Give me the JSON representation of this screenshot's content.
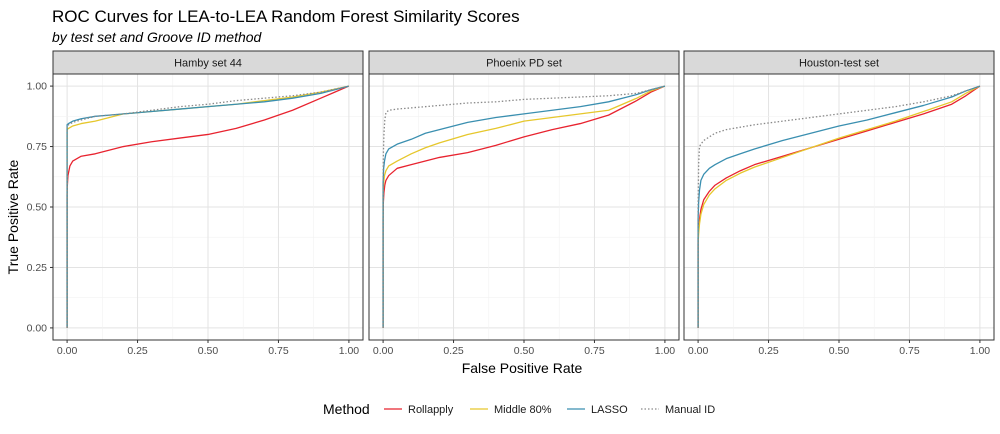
{
  "chart_data": {
    "type": "line",
    "title": "ROC Curves for LEA-to-LEA Random Forest Similarity Scores",
    "subtitle": "by test set and Groove ID method",
    "xlabel": "False Positive Rate",
    "ylabel": "True Positive Rate",
    "xlim": [
      0,
      1
    ],
    "ylim": [
      0,
      1
    ],
    "x_ticks": [
      "0.00",
      "0.25",
      "0.50",
      "0.75",
      "1.00"
    ],
    "y_ticks": [
      "0.00",
      "0.25",
      "0.50",
      "0.75",
      "1.00"
    ],
    "grid": true,
    "legend_position": "bottom",
    "legend": {
      "title": "Method",
      "entries": [
        {
          "name": "Rollapply",
          "color": "#e8232f",
          "dash": "solid"
        },
        {
          "name": "Middle 80%",
          "color": "#e6c72c",
          "dash": "solid"
        },
        {
          "name": "LASSO",
          "color": "#3a8fb0",
          "dash": "solid"
        },
        {
          "name": "Manual ID",
          "color": "#8a8a8a",
          "dash": "dotted"
        }
      ]
    },
    "panels": [
      {
        "name": "Hamby set 44",
        "series": [
          {
            "name": "Rollapply",
            "x": [
              0,
              0,
              0.001,
              0.003,
              0.01,
              0.02,
              0.05,
              0.1,
              0.15,
              0.2,
              0.3,
              0.4,
              0.5,
              0.6,
              0.7,
              0.8,
              0.9,
              0.95,
              1.0
            ],
            "y": [
              0,
              0.55,
              0.59,
              0.63,
              0.67,
              0.69,
              0.71,
              0.72,
              0.735,
              0.75,
              0.77,
              0.785,
              0.8,
              0.825,
              0.86,
              0.9,
              0.95,
              0.975,
              1.0
            ]
          },
          {
            "name": "Middle 80%",
            "x": [
              0,
              0,
              0.005,
              0.02,
              0.05,
              0.1,
              0.15,
              0.2,
              0.3,
              0.4,
              0.5,
              0.6,
              0.7,
              0.8,
              0.9,
              1.0
            ],
            "y": [
              0,
              0.82,
              0.825,
              0.835,
              0.845,
              0.855,
              0.87,
              0.885,
              0.895,
              0.905,
              0.915,
              0.925,
              0.94,
              0.955,
              0.975,
              1.0
            ]
          },
          {
            "name": "LASSO",
            "x": [
              0,
              0,
              0.005,
              0.02,
              0.05,
              0.1,
              0.15,
              0.2,
              0.3,
              0.4,
              0.5,
              0.6,
              0.7,
              0.8,
              0.9,
              1.0
            ],
            "y": [
              0,
              0.84,
              0.845,
              0.855,
              0.865,
              0.875,
              0.88,
              0.885,
              0.895,
              0.905,
              0.915,
              0.925,
              0.935,
              0.95,
              0.97,
              1.0
            ]
          },
          {
            "name": "Manual ID",
            "x": [
              0,
              0,
              0.005,
              0.02,
              0.05,
              0.1,
              0.15,
              0.2,
              0.3,
              0.4,
              0.5,
              0.6,
              0.7,
              0.8,
              0.9,
              1.0
            ],
            "y": [
              0,
              0.835,
              0.84,
              0.85,
              0.86,
              0.875,
              0.88,
              0.885,
              0.9,
              0.915,
              0.925,
              0.94,
              0.95,
              0.96,
              0.975,
              1.0
            ]
          }
        ]
      },
      {
        "name": "Phoenix PD set",
        "series": [
          {
            "name": "Rollapply",
            "x": [
              0,
              0,
              0.001,
              0.003,
              0.006,
              0.01,
              0.02,
              0.05,
              0.1,
              0.15,
              0.2,
              0.3,
              0.4,
              0.5,
              0.6,
              0.7,
              0.8,
              0.9,
              0.95,
              1.0
            ],
            "y": [
              0,
              0.45,
              0.52,
              0.56,
              0.59,
              0.61,
              0.63,
              0.66,
              0.675,
              0.69,
              0.705,
              0.725,
              0.755,
              0.79,
              0.82,
              0.845,
              0.88,
              0.94,
              0.975,
              1.0
            ]
          },
          {
            "name": "Middle 80%",
            "x": [
              0,
              0,
              0.002,
              0.005,
              0.01,
              0.02,
              0.05,
              0.1,
              0.15,
              0.2,
              0.3,
              0.4,
              0.5,
              0.6,
              0.7,
              0.8,
              0.9,
              0.95,
              1.0
            ],
            "y": [
              0,
              0.55,
              0.6,
              0.63,
              0.65,
              0.67,
              0.69,
              0.72,
              0.745,
              0.765,
              0.8,
              0.825,
              0.855,
              0.87,
              0.885,
              0.9,
              0.95,
              0.98,
              1.0
            ]
          },
          {
            "name": "LASSO",
            "x": [
              0,
              0,
              0.002,
              0.005,
              0.01,
              0.02,
              0.05,
              0.1,
              0.15,
              0.2,
              0.3,
              0.4,
              0.5,
              0.6,
              0.7,
              0.8,
              0.9,
              0.95,
              1.0
            ],
            "y": [
              0,
              0.6,
              0.66,
              0.69,
              0.72,
              0.74,
              0.76,
              0.78,
              0.805,
              0.82,
              0.85,
              0.87,
              0.885,
              0.9,
              0.915,
              0.935,
              0.965,
              0.985,
              1.0
            ]
          },
          {
            "name": "Manual ID",
            "x": [
              0,
              0,
              0.001,
              0.003,
              0.006,
              0.01,
              0.02,
              0.05,
              0.1,
              0.2,
              0.3,
              0.4,
              0.5,
              0.6,
              0.7,
              0.8,
              0.9,
              0.95,
              1.0
            ],
            "y": [
              0,
              0.6,
              0.72,
              0.8,
              0.86,
              0.89,
              0.9,
              0.905,
              0.91,
              0.92,
              0.93,
              0.935,
              0.945,
              0.95,
              0.955,
              0.96,
              0.97,
              0.985,
              1.0
            ]
          }
        ]
      },
      {
        "name": "Houston-test set",
        "series": [
          {
            "name": "Rollapply",
            "x": [
              0,
              0,
              0.002,
              0.005,
              0.01,
              0.02,
              0.04,
              0.06,
              0.1,
              0.15,
              0.2,
              0.3,
              0.4,
              0.5,
              0.6,
              0.7,
              0.8,
              0.9,
              0.95,
              1.0
            ],
            "y": [
              0,
              0.37,
              0.41,
              0.45,
              0.49,
              0.53,
              0.565,
              0.59,
              0.62,
              0.65,
              0.675,
              0.71,
              0.745,
              0.78,
              0.815,
              0.85,
              0.885,
              0.925,
              0.96,
              1.0
            ]
          },
          {
            "name": "Middle 80%",
            "x": [
              0,
              0,
              0.002,
              0.005,
              0.01,
              0.02,
              0.04,
              0.06,
              0.1,
              0.15,
              0.2,
              0.3,
              0.4,
              0.5,
              0.6,
              0.7,
              0.8,
              0.9,
              0.95,
              1.0
            ],
            "y": [
              0,
              0.35,
              0.39,
              0.43,
              0.47,
              0.51,
              0.55,
              0.575,
              0.61,
              0.64,
              0.665,
              0.705,
              0.745,
              0.785,
              0.82,
              0.855,
              0.895,
              0.935,
              0.97,
              1.0
            ]
          },
          {
            "name": "LASSO",
            "x": [
              0,
              0,
              0.002,
              0.005,
              0.01,
              0.02,
              0.04,
              0.06,
              0.1,
              0.15,
              0.2,
              0.3,
              0.4,
              0.5,
              0.6,
              0.7,
              0.8,
              0.9,
              0.95,
              1.0
            ],
            "y": [
              0,
              0.45,
              0.52,
              0.57,
              0.61,
              0.635,
              0.66,
              0.675,
              0.7,
              0.72,
              0.74,
              0.775,
              0.805,
              0.835,
              0.86,
              0.89,
              0.92,
              0.955,
              0.98,
              1.0
            ]
          },
          {
            "name": "Manual ID",
            "x": [
              0,
              0,
              0.002,
              0.005,
              0.01,
              0.02,
              0.04,
              0.06,
              0.1,
              0.15,
              0.2,
              0.3,
              0.4,
              0.5,
              0.6,
              0.7,
              0.8,
              0.9,
              0.95,
              1.0
            ],
            "y": [
              0,
              0.5,
              0.68,
              0.75,
              0.76,
              0.775,
              0.79,
              0.805,
              0.82,
              0.83,
              0.84,
              0.855,
              0.87,
              0.885,
              0.9,
              0.915,
              0.935,
              0.96,
              0.98,
              1.0
            ]
          }
        ]
      }
    ]
  }
}
